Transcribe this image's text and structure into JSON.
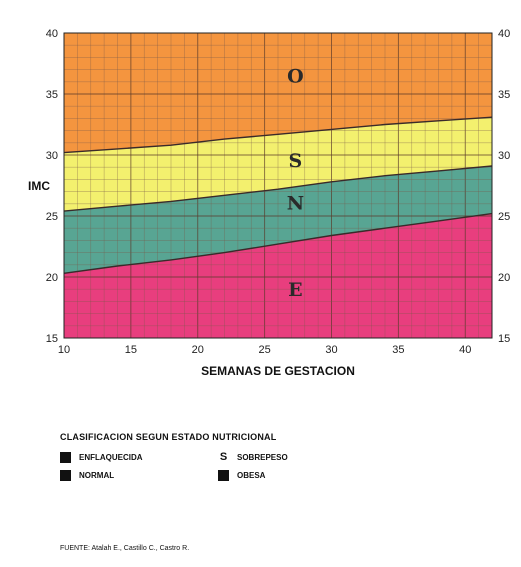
{
  "chart_data": {
    "type": "area",
    "xlabel": "SEMANAS DE GESTACION",
    "ylabel": "IMC",
    "xlim": [
      10,
      42
    ],
    "ylim": [
      15,
      40
    ],
    "x_ticks": [
      10,
      15,
      20,
      25,
      30,
      35,
      40
    ],
    "y_ticks": [
      15,
      20,
      25,
      30,
      35,
      40
    ],
    "grid": true,
    "x": [
      10,
      14,
      18,
      22,
      26,
      30,
      34,
      38,
      42
    ],
    "boundaries": [
      {
        "between": [
          "E",
          "N"
        ],
        "values": [
          20.3,
          20.9,
          21.4,
          22.0,
          22.7,
          23.4,
          24.0,
          24.6,
          25.2
        ]
      },
      {
        "between": [
          "N",
          "S"
        ],
        "values": [
          25.4,
          25.8,
          26.2,
          26.7,
          27.2,
          27.8,
          28.3,
          28.7,
          29.1
        ]
      },
      {
        "between": [
          "S",
          "O"
        ],
        "values": [
          30.2,
          30.5,
          30.8,
          31.3,
          31.7,
          32.1,
          32.5,
          32.8,
          33.1
        ]
      }
    ],
    "zones": [
      {
        "label": "O",
        "color": "#f4953f",
        "label_x": 27.3,
        "label_y": 36.5
      },
      {
        "label": "S",
        "color": "#f3f06e",
        "label_x": 27.3,
        "label_y": 29.6
      },
      {
        "label": "N",
        "color": "#58a593",
        "label_x": 27.3,
        "label_y": 26.1
      },
      {
        "label": "E",
        "color": "#e83e7e",
        "label_x": 27.3,
        "label_y": 19.0
      }
    ]
  },
  "legend": {
    "title": "CLASIFICACION SEGUN ESTADO NUTRICIONAL",
    "items": [
      {
        "marker": "swatch",
        "label": "ENFLAQUECIDA"
      },
      {
        "marker": "S",
        "label": "SOBREPESO"
      },
      {
        "marker": "swatch",
        "label": "NORMAL"
      },
      {
        "marker": "swatch",
        "label": "OBESA"
      }
    ]
  },
  "source": "FUENTE: Atalah E., Castillo C., Castro R."
}
